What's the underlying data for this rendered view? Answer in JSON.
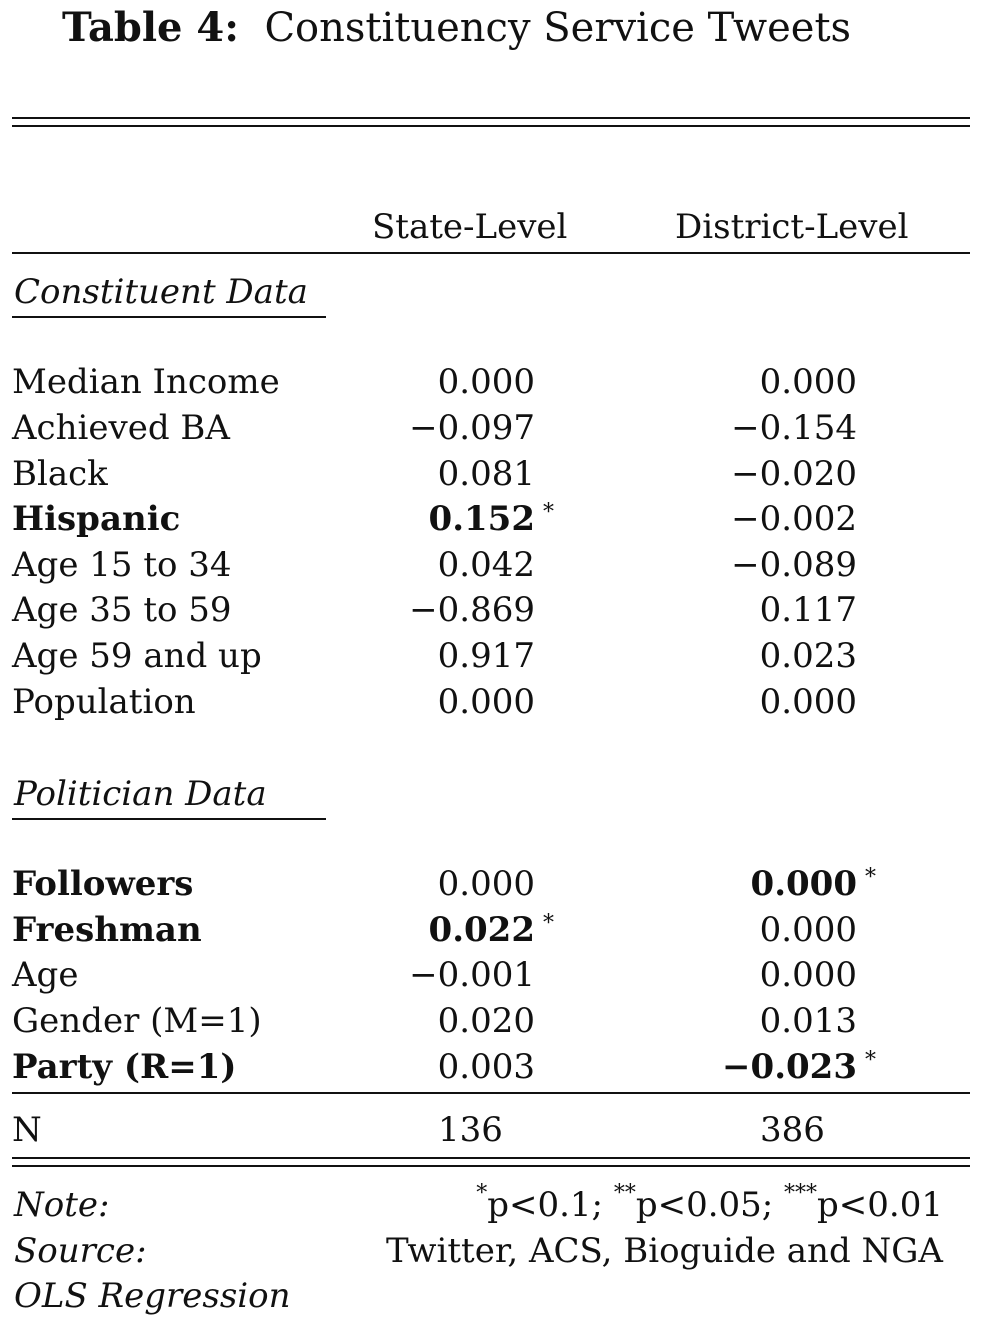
{
  "title": {
    "label": "Table 4:",
    "text": "Constituency Service Tweets"
  },
  "columns": [
    "State-Level",
    "District-Level"
  ],
  "sections": {
    "constituent": "Constituent Data",
    "politician": "Politician Data"
  },
  "constituent_rows": [
    {
      "label": "Median Income",
      "state": "0.000",
      "district": "0.000"
    },
    {
      "label": "Achieved BA",
      "state": "−0.097",
      "district": "−0.154"
    },
    {
      "label": "Black",
      "state": "0.081",
      "district": "−0.020"
    },
    {
      "label": "Hispanic",
      "state": "0.152",
      "district": "−0.002",
      "state_star": "*"
    },
    {
      "label": "Age 15 to 34",
      "state": "0.042",
      "district": "−0.089"
    },
    {
      "label": "Age 35 to 59",
      "state": "−0.869",
      "district": "0.117"
    },
    {
      "label": "Age 59 and up",
      "state": "0.917",
      "district": "0.023"
    },
    {
      "label": "Population",
      "state": "0.000",
      "district": "0.000"
    }
  ],
  "politician_rows": [
    {
      "label": "Followers",
      "state": "0.000",
      "district": "0.000",
      "district_star": "*"
    },
    {
      "label": "Freshman",
      "state": "0.022",
      "district": "0.000",
      "state_star": "*"
    },
    {
      "label": "Age",
      "state": "−0.001",
      "district": "0.000"
    },
    {
      "label": "Gender (M=1)",
      "state": "0.020",
      "district": "0.013"
    },
    {
      "label": "Party (R=1)",
      "state": "0.003",
      "district_sign": "−",
      "district": "0.023",
      "district_star": "*"
    }
  ],
  "n_row": {
    "label": "N",
    "state": "136",
    "district": "386"
  },
  "notes": {
    "note_label": "Note:",
    "note_parts": [
      "*",
      "p<0.1; ",
      "**",
      "p<0.05; ",
      "***",
      "p<0.01"
    ],
    "source_label": "Source:",
    "source_text": "Twitter, ACS, Bioguide and NGA",
    "method": "OLS Regression"
  }
}
